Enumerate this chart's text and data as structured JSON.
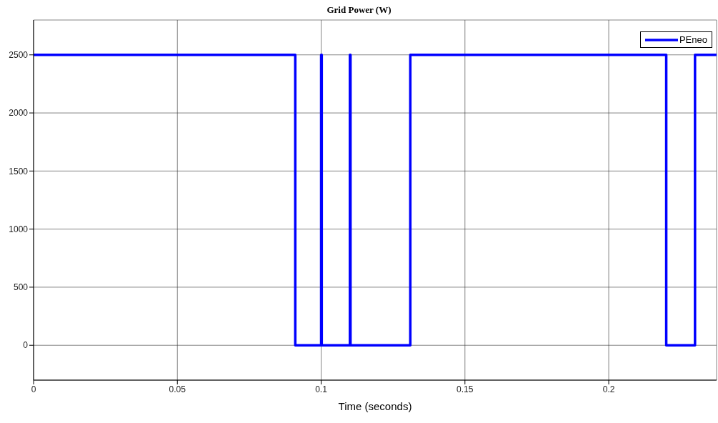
{
  "chart_data": {
    "type": "step",
    "title": "Grid Power (W)",
    "xlabel": "Time (seconds)",
    "series": [
      {
        "name": "PEneo",
        "color": "#0000ff",
        "x": [
          0,
          0.091,
          0.1,
          0.1002,
          0.11,
          0.1102,
          0.131,
          0.22,
          0.23,
          0.2375
        ],
        "values": [
          2500,
          0,
          2500,
          0,
          2500,
          0,
          2500,
          0,
          2500,
          2500
        ]
      }
    ],
    "xlim": [
      0,
      0.2375
    ],
    "xticks": [
      0,
      0.05,
      0.1,
      0.15,
      0.2
    ],
    "ylim": [
      -300,
      2800
    ],
    "yticks": [
      0,
      500,
      1000,
      1500,
      2000,
      2500
    ],
    "grid": true,
    "legend": "top right",
    "line_style": "solid",
    "marker": "none"
  }
}
